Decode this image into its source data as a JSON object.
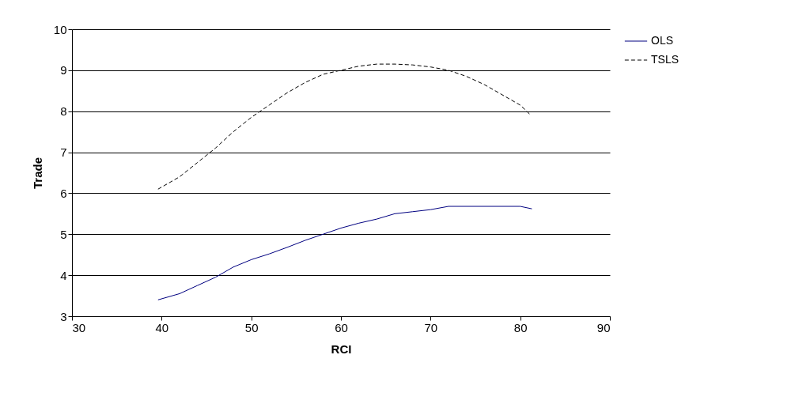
{
  "chart_data": {
    "type": "line",
    "xlabel": "RCI",
    "ylabel": "Trade",
    "xlim": [
      30,
      90
    ],
    "xticks": [
      30,
      40,
      50,
      60,
      70,
      80,
      90
    ],
    "ylim": [
      3,
      10
    ],
    "yticks": [
      3,
      4,
      5,
      6,
      7,
      8,
      9,
      10
    ],
    "grid": "y",
    "legend": "right",
    "series": [
      {
        "name": "OLS",
        "color": "#000080",
        "line_style": "solid",
        "x": [
          39.6,
          42,
          44,
          46,
          48,
          50,
          52,
          54,
          56,
          58,
          60,
          62,
          64,
          66,
          68,
          70,
          72,
          75,
          80,
          81.3
        ],
        "values": [
          3.4,
          3.55,
          3.75,
          3.95,
          4.2,
          4.38,
          4.52,
          4.68,
          4.85,
          5.0,
          5.15,
          5.27,
          5.37,
          5.5,
          5.55,
          5.6,
          5.68,
          5.68,
          5.68,
          5.62
        ]
      },
      {
        "name": "TSLS",
        "color": "#000000",
        "line_style": "dashed",
        "x": [
          39.6,
          42,
          44,
          46,
          48,
          50,
          52,
          54,
          56,
          58,
          60,
          62,
          64,
          66,
          68,
          70,
          72,
          74,
          76,
          78,
          80,
          81.2
        ],
        "values": [
          6.1,
          6.4,
          6.75,
          7.1,
          7.5,
          7.85,
          8.15,
          8.45,
          8.7,
          8.9,
          9.0,
          9.1,
          9.15,
          9.15,
          9.13,
          9.08,
          9.0,
          8.85,
          8.65,
          8.4,
          8.15,
          7.9
        ]
      }
    ]
  }
}
